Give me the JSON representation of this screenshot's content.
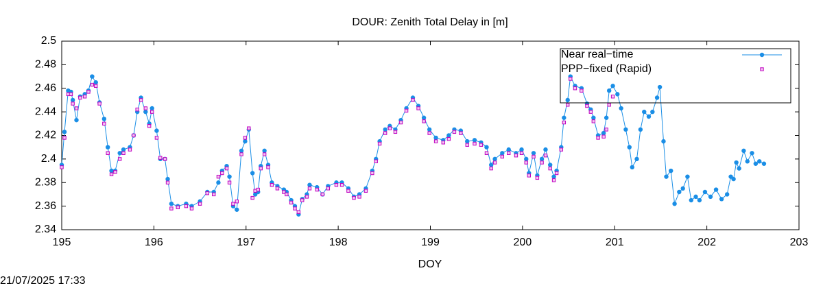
{
  "chart_data": {
    "type": "line",
    "title": "DOUR: Zenith Total Delay in [m]",
    "xlabel": "DOY",
    "timestamp": "21/07/2025 17:33",
    "legend": "top right",
    "grid": false,
    "xlim": [
      195,
      203
    ],
    "xticks": [
      195,
      196,
      197,
      198,
      199,
      200,
      201,
      202,
      203
    ],
    "ylim": [
      2.34,
      2.5
    ],
    "yticks": [
      2.34,
      2.36,
      2.38,
      2.4,
      2.42,
      2.44,
      2.46,
      2.48,
      2.5
    ],
    "x": [
      195.0,
      195.03,
      195.07,
      195.1,
      195.12,
      195.16,
      195.2,
      195.25,
      195.29,
      195.33,
      195.37,
      195.41,
      195.46,
      195.5,
      195.54,
      195.58,
      195.63,
      195.67,
      195.74,
      195.78,
      195.82,
      195.86,
      195.91,
      195.95,
      195.98,
      196.03,
      196.07,
      196.12,
      196.15,
      196.19,
      196.26,
      196.35,
      196.41,
      196.5,
      196.58,
      196.65,
      196.7,
      196.74,
      196.79,
      196.82,
      196.86,
      196.9,
      196.95,
      196.99,
      197.03,
      197.07,
      197.1,
      197.13,
      197.16,
      197.2,
      197.24,
      197.28,
      197.34,
      197.41,
      197.44,
      197.49,
      197.53,
      197.57,
      197.61,
      197.66,
      197.69,
      197.77,
      197.83,
      197.89,
      197.98,
      198.04,
      198.11,
      198.17,
      198.23,
      198.3,
      198.37,
      198.41,
      198.45,
      198.51,
      198.56,
      198.62,
      198.68,
      198.74,
      198.81,
      198.87,
      198.93,
      198.99,
      199.06,
      199.14,
      199.2,
      199.26,
      199.33,
      199.4,
      199.48,
      199.55,
      199.61,
      199.66,
      199.7,
      199.78,
      199.85,
      199.93,
      199.99,
      200.04,
      200.07,
      200.12,
      200.16,
      200.21,
      200.25,
      200.3,
      200.34,
      200.37,
      200.42,
      200.45,
      200.49,
      200.52,
      200.57,
      200.64,
      200.7,
      200.74,
      200.77,
      200.82,
      200.88,
      200.91,
      200.94,
      200.98,
      201.03,
      201.07,
      201.12,
      201.16,
      201.19,
      201.24,
      201.28,
      201.32,
      201.37,
      201.41,
      201.46,
      201.49,
      201.53,
      201.56,
      201.61,
      201.65,
      201.7,
      201.74,
      201.79,
      201.83,
      201.88,
      201.92,
      201.98,
      202.04,
      202.1,
      202.16,
      202.22,
      202.26,
      202.29,
      202.32,
      202.35,
      202.4,
      202.44,
      202.49,
      202.53,
      202.57,
      202.62
    ],
    "series": [
      {
        "name": "Near real−time",
        "color": "#1a8ee6",
        "values": [
          2.395,
          2.423,
          2.458,
          2.457,
          2.45,
          2.433,
          2.453,
          2.455,
          2.458,
          2.47,
          2.465,
          2.448,
          2.434,
          2.41,
          2.39,
          2.39,
          2.405,
          2.408,
          2.41,
          2.42,
          2.44,
          2.452,
          2.44,
          2.43,
          2.443,
          2.424,
          2.4,
          2.4,
          2.383,
          2.362,
          2.36,
          2.362,
          2.36,
          2.364,
          2.372,
          2.372,
          2.38,
          2.39,
          2.394,
          2.385,
          2.36,
          2.357,
          2.407,
          2.415,
          2.425,
          2.388,
          2.37,
          2.372,
          2.394,
          2.407,
          2.395,
          2.38,
          2.377,
          2.374,
          2.372,
          2.365,
          2.36,
          2.353,
          2.366,
          2.37,
          2.378,
          2.376,
          2.37,
          2.377,
          2.38,
          2.38,
          2.375,
          2.368,
          2.37,
          2.375,
          2.39,
          2.4,
          2.415,
          2.425,
          2.428,
          2.425,
          2.433,
          2.443,
          2.452,
          2.445,
          2.435,
          2.425,
          2.418,
          2.416,
          2.42,
          2.425,
          2.424,
          2.415,
          2.416,
          2.414,
          2.41,
          2.395,
          2.4,
          2.405,
          2.408,
          2.405,
          2.408,
          2.4,
          2.388,
          2.405,
          2.386,
          2.4,
          2.408,
          2.395,
          2.385,
          2.39,
          2.41,
          2.435,
          2.45,
          2.47,
          2.462,
          2.46,
          2.447,
          2.442,
          2.435,
          2.42,
          2.422,
          2.435,
          2.458,
          2.462,
          2.455,
          2.443,
          2.425,
          2.41,
          2.393,
          2.4,
          2.425,
          2.44,
          2.436,
          2.44,
          2.452,
          2.461,
          2.415,
          2.385,
          2.39,
          2.362,
          2.372,
          2.375,
          2.385,
          2.365,
          2.368,
          2.365,
          2.372,
          2.368,
          2.374,
          2.366,
          2.37,
          2.385,
          2.383,
          2.397,
          2.392,
          2.407,
          2.398,
          2.405,
          2.396,
          2.398,
          2.396
        ]
      },
      {
        "name": "PPP−fixed (Rapid)",
        "color": "#c000c0",
        "values": [
          2.393,
          2.418,
          2.455,
          2.455,
          2.447,
          2.443,
          2.452,
          2.453,
          2.457,
          2.463,
          2.462,
          2.447,
          2.43,
          2.405,
          2.387,
          2.389,
          2.4,
          2.405,
          2.408,
          2.42,
          2.442,
          2.45,
          2.443,
          2.428,
          2.44,
          2.418,
          2.401,
          2.4,
          2.38,
          2.358,
          2.359,
          2.36,
          2.358,
          2.362,
          2.371,
          2.37,
          2.385,
          2.388,
          2.392,
          2.38,
          2.362,
          2.364,
          2.404,
          2.418,
          2.426,
          2.367,
          2.373,
          2.374,
          2.392,
          2.404,
          2.393,
          2.378,
          2.375,
          2.372,
          2.37,
          2.363,
          2.358,
          2.355,
          2.365,
          2.368,
          2.375,
          2.374,
          2.37,
          2.375,
          2.378,
          2.378,
          2.373,
          2.367,
          2.368,
          2.373,
          2.388,
          2.398,
          2.413,
          2.422,
          2.426,
          2.423,
          2.431,
          2.441,
          2.45,
          2.443,
          2.432,
          2.422,
          2.415,
          2.414,
          2.417,
          2.423,
          2.422,
          2.412,
          2.413,
          2.412,
          2.405,
          2.392,
          2.397,
          2.402,
          2.405,
          2.403,
          2.405,
          2.397,
          2.386,
          2.402,
          2.384,
          2.397,
          2.403,
          2.392,
          2.382,
          2.388,
          2.408,
          2.431,
          2.446,
          2.468,
          2.46,
          2.458,
          2.445,
          2.44,
          2.432,
          2.418,
          2.419,
          2.425,
          2.446,
          2.453,
          null,
          null,
          null,
          null,
          null,
          null,
          null,
          null,
          null,
          null,
          null,
          null,
          null,
          null,
          null,
          null,
          null,
          null,
          null,
          null,
          null,
          null,
          null,
          null,
          null,
          null,
          null,
          null,
          null,
          null,
          null,
          null,
          null,
          null,
          null,
          null,
          null
        ]
      }
    ]
  }
}
